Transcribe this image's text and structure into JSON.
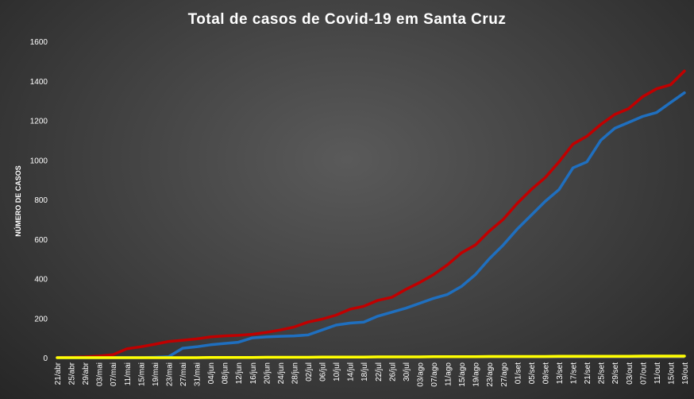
{
  "chart_data": {
    "type": "line",
    "title": "Total de casos de Covid-19 em Santa Cruz",
    "xlabel": "",
    "ylabel": "NÚMERO DE CASOS",
    "ylim": [
      0,
      1600
    ],
    "yticks": [
      0,
      200,
      400,
      600,
      800,
      1000,
      1200,
      1400,
      1600
    ],
    "grid": false,
    "legend": "none",
    "categories": [
      "21/abr",
      "25/abr",
      "29/abr",
      "03/mai",
      "07/mai",
      "11/mai",
      "15/mai",
      "19/mai",
      "23/mai",
      "27/mai",
      "31/mai",
      "04/jun",
      "08/jun",
      "12/jun",
      "16/jun",
      "20/jun",
      "24/jun",
      "28/jun",
      "02/jul",
      "06/jul",
      "10/jul",
      "14/jul",
      "18/jul",
      "22/jul",
      "26/jul",
      "30/jul",
      "03/ago",
      "07/ago",
      "11/ago",
      "15/ago",
      "19/ago",
      "23/ago",
      "27/ago",
      "01/set",
      "05/set",
      "09/set",
      "13/set",
      "17/set",
      "21/set",
      "25/set",
      "29/set",
      "03/out",
      "07/out",
      "11/out",
      "15/out",
      "19/out"
    ],
    "series": [
      {
        "color": "#c00000",
        "values": [
          1,
          2,
          4,
          8,
          15,
          45,
          55,
          68,
          82,
          88,
          95,
          105,
          110,
          113,
          118,
          128,
          140,
          155,
          180,
          195,
          215,
          245,
          260,
          290,
          305,
          345,
          380,
          420,
          470,
          530,
          570,
          640,
          700,
          780,
          850,
          910,
          990,
          1080,
          1120,
          1180,
          1230,
          1260,
          1320,
          1360,
          1380,
          1450
        ]
      },
      {
        "color": "#1f6fbf",
        "values": [
          0,
          0,
          0,
          0,
          0,
          0,
          0,
          2,
          5,
          48,
          55,
          65,
          72,
          78,
          100,
          105,
          108,
          110,
          115,
          140,
          165,
          175,
          180,
          210,
          230,
          250,
          275,
          300,
          320,
          360,
          420,
          500,
          570,
          650,
          720,
          790,
          850,
          960,
          990,
          1100,
          1160,
          1190,
          1220,
          1240,
          1290,
          1340
        ]
      },
      {
        "color": "#ffff00",
        "values": [
          0,
          0,
          0,
          0,
          0,
          0,
          0,
          0,
          0,
          0,
          0,
          1,
          1,
          1,
          1,
          2,
          2,
          2,
          2,
          3,
          3,
          3,
          3,
          4,
          4,
          4,
          4,
          5,
          5,
          5,
          5,
          6,
          6,
          6,
          6,
          6,
          7,
          7,
          7,
          7,
          7,
          7,
          8,
          8,
          8,
          8
        ]
      }
    ]
  }
}
